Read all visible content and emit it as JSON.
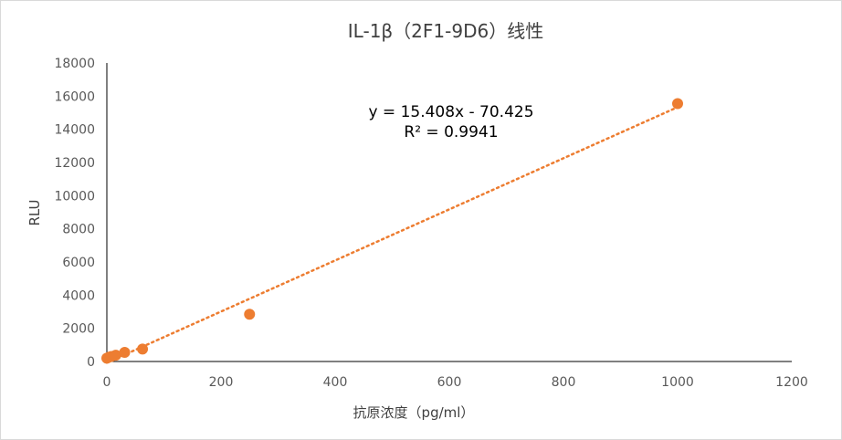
{
  "chart_data": {
    "type": "scatter",
    "title": "IL-1β（2F1-9D6）线性",
    "xlabel": "抗原浓度（pg/ml）",
    "ylabel": "RLU",
    "xlim": [
      0,
      1200
    ],
    "ylim": [
      0,
      18000
    ],
    "x_ticks": [
      "0",
      "200",
      "400",
      "600",
      "800",
      "1000",
      "1200"
    ],
    "y_ticks": [
      "0",
      "2000",
      "4000",
      "6000",
      "8000",
      "10000",
      "12000",
      "14000",
      "16000",
      "18000"
    ],
    "points": [
      {
        "x": 0,
        "y": 200
      },
      {
        "x": 3.9,
        "y": 260
      },
      {
        "x": 7.8,
        "y": 300
      },
      {
        "x": 15.6,
        "y": 380
      },
      {
        "x": 31.25,
        "y": 550
      },
      {
        "x": 62.5,
        "y": 750
      },
      {
        "x": 250,
        "y": 2850
      },
      {
        "x": 1000,
        "y": 15550
      }
    ],
    "trendline": {
      "slope": 15.408,
      "intercept": -70.425,
      "x_range": [
        0,
        1000
      ]
    },
    "equation": "y = 15.408x - 70.425",
    "r_squared": "R² = 0.9941",
    "grid": false,
    "legend": "none",
    "colors": {
      "marker": "#ED7D31",
      "trendline": "#ED7D31",
      "axis": "#000000"
    }
  }
}
